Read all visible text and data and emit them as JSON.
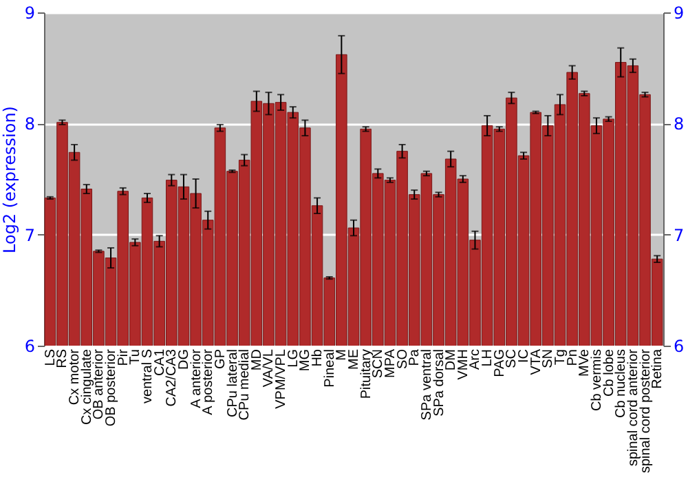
{
  "chart_data": {
    "type": "bar",
    "ylabel": "Log2 (expression)",
    "categories": [
      "LS",
      "RS",
      "Cx motor",
      "Cx cingulate",
      "OB anterior",
      "OB posterior",
      "Pir",
      "Tu",
      "ventral S",
      "CA1",
      "CA2/CA3",
      "DG",
      "A anterior",
      "A posterior",
      "GP",
      "CPu lateral",
      "CPu medial",
      "MD",
      "VA/VL",
      "VPM/VPL",
      "LG",
      "MG",
      "Hb",
      "Pineal",
      "M",
      "ME",
      "Pituitary",
      "SCN",
      "MPA",
      "SO",
      "Pa",
      "SPa ventral",
      "SPa dorsal",
      "DM",
      "VMH",
      "Arc",
      "LH",
      "PAG",
      "SC",
      "IC",
      "VTA",
      "SN",
      "Tg",
      "Pn",
      "MVe",
      "Cb vermis",
      "Cb lobe",
      "Cb nucleus",
      "spinal cord anterior",
      "spinal cord posterior",
      "Retina"
    ],
    "values": [
      7.33,
      8.01,
      7.74,
      7.41,
      6.85,
      6.79,
      7.39,
      6.93,
      7.33,
      6.94,
      7.49,
      7.43,
      7.37,
      7.13,
      7.96,
      7.57,
      7.67,
      8.2,
      8.18,
      8.19,
      8.1,
      7.96,
      7.26,
      6.61,
      8.62,
      7.06,
      7.95,
      7.55,
      7.49,
      7.75,
      7.36,
      7.55,
      7.36,
      7.68,
      7.5,
      6.95,
      7.98,
      7.95,
      8.23,
      7.71,
      8.1,
      7.98,
      8.17,
      8.46,
      8.27,
      7.98,
      8.04,
      8.55,
      8.52,
      8.26,
      6.78
    ],
    "errors": [
      0.01,
      0.02,
      0.07,
      0.04,
      0.01,
      0.09,
      0.03,
      0.03,
      0.04,
      0.05,
      0.05,
      0.11,
      0.13,
      0.08,
      0.03,
      0.01,
      0.05,
      0.09,
      0.1,
      0.07,
      0.05,
      0.07,
      0.07,
      0.01,
      0.17,
      0.07,
      0.02,
      0.04,
      0.02,
      0.06,
      0.04,
      0.02,
      0.02,
      0.07,
      0.03,
      0.08,
      0.09,
      0.02,
      0.05,
      0.03,
      0.01,
      0.09,
      0.09,
      0.06,
      0.02,
      0.07,
      0.02,
      0.13,
      0.06,
      0.02,
      0.03
    ],
    "color": "#b02a2a",
    "ylim": [
      6,
      9
    ],
    "yticks": [
      6,
      7,
      8,
      9
    ],
    "y2lim": [
      6,
      9
    ],
    "y2ticks": [
      6,
      7,
      8,
      9
    ],
    "grid": "y"
  }
}
